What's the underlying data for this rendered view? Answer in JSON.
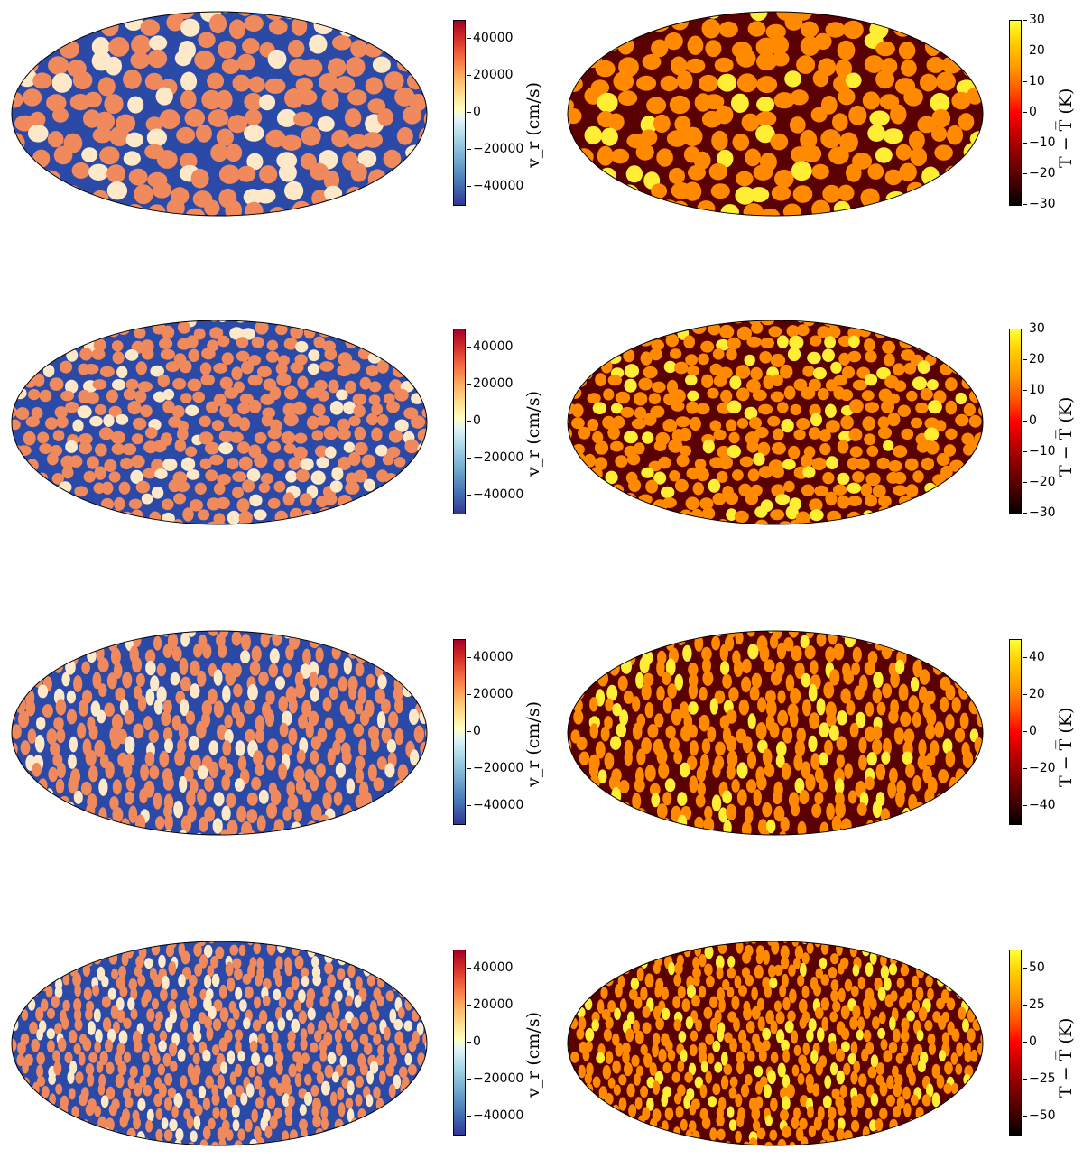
{
  "rows": [
    {
      "vr": {
        "ticks": [
          "40000",
          "20000",
          "0",
          "−20000",
          "−40000"
        ],
        "label": "v_r (cm/s)"
      },
      "temp": {
        "ticks": [
          "30",
          "20",
          "10",
          "0",
          "−10",
          "−20",
          "−30"
        ],
        "label": "T − T̅ (K)"
      }
    },
    {
      "vr": {
        "ticks": [
          "40000",
          "20000",
          "0",
          "−20000",
          "−40000"
        ],
        "label": "v_r (cm/s)"
      },
      "temp": {
        "ticks": [
          "30",
          "20",
          "10",
          "0",
          "−10",
          "−20",
          "−30"
        ],
        "label": "T − T̅ (K)"
      }
    },
    {
      "vr": {
        "ticks": [
          "40000",
          "20000",
          "0",
          "−20000",
          "−40000"
        ],
        "label": "v_r (cm/s)"
      },
      "temp": {
        "ticks": [
          "40",
          "20",
          "0",
          "−20",
          "−40"
        ],
        "label": "T − T̅ (K)"
      }
    },
    {
      "vr": {
        "ticks": [
          "40000",
          "20000",
          "0",
          "−20000",
          "−40000"
        ],
        "label": "v_r (cm/s)"
      },
      "temp": {
        "ticks": [
          "50",
          "25",
          "0",
          "−25",
          "−50"
        ],
        "label": "T − T̅ (K)"
      }
    }
  ],
  "colors": {
    "vr_cell": "#f08a5d",
    "vr_lane": "#2b4aa8",
    "vr_light": "#fde9c8",
    "temp_cell": "#ff8a00",
    "temp_lane": "#5a0000",
    "temp_hot": "#ffee33"
  }
}
